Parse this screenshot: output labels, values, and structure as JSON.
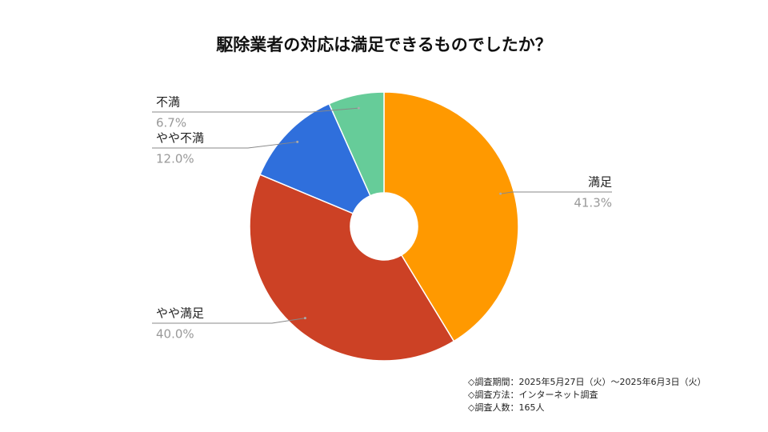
{
  "chart_data": {
    "type": "donut",
    "title": "駆除業者の対応は満足できるものでしたか？",
    "categories": [
      "満足",
      "やや満足",
      "やや不満",
      "不満"
    ],
    "values": [
      41.3,
      40.0,
      12.0,
      6.7
    ],
    "value_labels": [
      "41.3%",
      "40.0%",
      "12.0%",
      "6.7%"
    ],
    "colors": [
      "#ff9900",
      "#cc4125",
      "#2f6fdc",
      "#66cc99"
    ]
  },
  "notes": [
    "◇調査期間：2025年5月27日（火）～2025年6月3日（火）",
    "◇調査方法：インターネット調査",
    "◇調査人数：165人"
  ]
}
